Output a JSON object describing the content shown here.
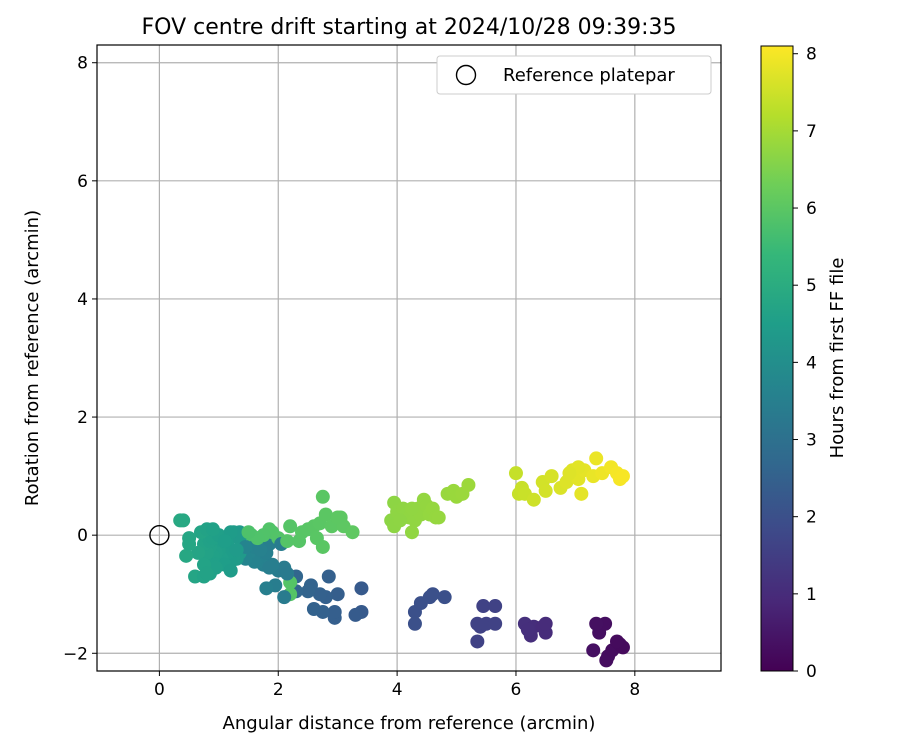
{
  "chart_data": {
    "type": "scatter",
    "title": "FOV centre drift starting at 2024/10/28 09:39:35",
    "xlabel": "Angular distance from reference (arcmin)",
    "ylabel": "Rotation from reference (arcmin)",
    "xlim": [
      -1.05,
      9.45
    ],
    "ylim": [
      -2.3,
      8.3
    ],
    "xticks": [
      "0",
      "2",
      "4",
      "6",
      "8"
    ],
    "yticks": [
      "−2",
      "0",
      "2",
      "4",
      "6",
      "8"
    ],
    "grid": true,
    "legend": {
      "placement": "top-right",
      "entries": [
        "Reference platepar"
      ]
    },
    "reference_point": {
      "x": 0,
      "y": 0
    },
    "colorbar": {
      "label": "Hours from first FF file",
      "range": [
        0,
        8.1
      ],
      "ticks": [
        "0",
        "1",
        "2",
        "3",
        "4",
        "5",
        "6",
        "7",
        "8"
      ],
      "colormap": "viridis",
      "stops": [
        "#440154",
        "#482878",
        "#3e4989",
        "#31688e",
        "#26828e",
        "#1f9e89",
        "#35b779",
        "#6ece58",
        "#b5de2b",
        "#fde725"
      ]
    },
    "series": [
      {
        "points": [
          [
            7.55,
            -2.05
          ],
          [
            7.52,
            -2.12
          ],
          [
            7.62,
            -1.95
          ],
          [
            7.75,
            -1.85
          ],
          [
            7.3,
            -1.95
          ],
          [
            7.4,
            -1.65
          ],
          [
            7.5,
            -1.5
          ],
          [
            7.35,
            -1.5
          ],
          [
            7.8,
            -1.9
          ],
          [
            7.7,
            -1.8
          ],
          [
            6.15,
            -1.5
          ],
          [
            6.25,
            -1.7
          ],
          [
            6.3,
            -1.55
          ],
          [
            6.45,
            -1.55
          ],
          [
            6.5,
            -1.65
          ],
          [
            6.5,
            -1.5
          ],
          [
            6.2,
            -1.6
          ],
          [
            5.4,
            -1.55
          ],
          [
            5.45,
            -1.2
          ],
          [
            5.5,
            -1.5
          ],
          [
            5.65,
            -1.2
          ],
          [
            5.65,
            -1.5
          ],
          [
            5.35,
            -1.8
          ],
          [
            5.35,
            -1.5
          ],
          [
            4.3,
            -1.3
          ],
          [
            4.3,
            -1.5
          ],
          [
            4.4,
            -1.15
          ],
          [
            4.55,
            -1.05
          ],
          [
            4.6,
            -1.0
          ],
          [
            4.8,
            -1.05
          ],
          [
            3.4,
            -0.9
          ],
          [
            3.4,
            -1.3
          ],
          [
            3.3,
            -1.35
          ],
          [
            3.0,
            -1.0
          ],
          [
            2.95,
            -1.4
          ],
          [
            2.95,
            -1.3
          ],
          [
            2.85,
            -0.7
          ],
          [
            2.8,
            -1.05
          ],
          [
            2.75,
            -1.3
          ],
          [
            2.7,
            -1.0
          ],
          [
            2.6,
            -1.25
          ],
          [
            2.55,
            -0.85
          ],
          [
            2.5,
            -0.95
          ],
          [
            2.3,
            -0.95
          ],
          [
            2.2,
            -1.0
          ],
          [
            2.1,
            -1.05
          ],
          [
            2.3,
            -0.7
          ],
          [
            2.2,
            -0.8
          ],
          [
            1.95,
            -0.85
          ],
          [
            1.8,
            -0.9
          ],
          [
            2.0,
            -0.6
          ],
          [
            2.1,
            -0.55
          ],
          [
            2.15,
            -0.65
          ],
          [
            1.9,
            -0.5
          ],
          [
            1.75,
            -0.5
          ],
          [
            1.7,
            -0.45
          ],
          [
            1.85,
            -0.55
          ],
          [
            1.65,
            -0.4
          ],
          [
            1.55,
            -0.35
          ],
          [
            1.6,
            -0.45
          ],
          [
            1.5,
            -0.3
          ],
          [
            1.45,
            -0.4
          ],
          [
            1.35,
            -0.3
          ],
          [
            1.3,
            -0.4
          ],
          [
            1.25,
            -0.35
          ],
          [
            1.2,
            -0.45
          ],
          [
            1.15,
            -0.3
          ],
          [
            1.05,
            -0.4
          ],
          [
            1.55,
            0.0
          ],
          [
            1.6,
            -0.2
          ],
          [
            1.8,
            -0.3
          ],
          [
            1.85,
            -0.15
          ],
          [
            1.7,
            -0.25
          ],
          [
            1.0,
            -0.25
          ],
          [
            0.95,
            -0.3
          ],
          [
            0.9,
            -0.35
          ],
          [
            0.85,
            -0.2
          ],
          [
            0.8,
            -0.3
          ],
          [
            0.75,
            -0.15
          ],
          [
            0.85,
            -0.1
          ],
          [
            0.9,
            -0.05
          ],
          [
            1.0,
            0.0
          ],
          [
            0.7,
            0.05
          ],
          [
            0.8,
            0.1
          ],
          [
            0.9,
            0.1
          ],
          [
            0.65,
            -0.3
          ],
          [
            0.6,
            -0.7
          ],
          [
            0.75,
            -0.7
          ],
          [
            0.85,
            -0.65
          ],
          [
            0.95,
            -0.5
          ],
          [
            1.1,
            -0.5
          ],
          [
            1.2,
            -0.6
          ],
          [
            0.45,
            -0.35
          ],
          [
            0.5,
            -0.05
          ],
          [
            0.5,
            -0.15
          ],
          [
            0.35,
            0.25
          ],
          [
            0.4,
            0.25
          ],
          [
            1.25,
            0.05
          ],
          [
            1.15,
            -0.1
          ],
          [
            1.35,
            -0.05
          ],
          [
            1.35,
            0.05
          ],
          [
            1.45,
            -0.2
          ],
          [
            1.2,
            0.05
          ],
          [
            1.1,
            -0.1
          ],
          [
            1.3,
            -0.25
          ],
          [
            0.95,
            -0.55
          ],
          [
            0.75,
            -0.5
          ],
          [
            0.8,
            -0.65
          ],
          [
            1.9,
            0.05
          ],
          [
            1.85,
            0.1
          ],
          [
            2.0,
            -0.05
          ],
          [
            2.05,
            -0.15
          ],
          [
            2.15,
            -0.1
          ],
          [
            2.2,
            0.15
          ],
          [
            2.35,
            -0.1
          ],
          [
            2.4,
            0.05
          ],
          [
            2.5,
            0.1
          ],
          [
            2.6,
            0.15
          ],
          [
            2.7,
            0.2
          ],
          [
            2.75,
            -0.2
          ],
          [
            2.65,
            -0.05
          ],
          [
            2.8,
            0.35
          ],
          [
            2.75,
            0.65
          ],
          [
            2.9,
            0.15
          ],
          [
            3.05,
            0.3
          ],
          [
            3.1,
            0.15
          ],
          [
            3.25,
            0.05
          ],
          [
            3.0,
            0.3
          ],
          [
            1.75,
            0.0
          ],
          [
            1.65,
            -0.05
          ],
          [
            1.5,
            0.05
          ],
          [
            3.95,
            0.55
          ],
          [
            3.9,
            0.25
          ],
          [
            3.95,
            0.15
          ],
          [
            4.0,
            0.4
          ],
          [
            4.1,
            0.45
          ],
          [
            4.15,
            0.35
          ],
          [
            4.2,
            0.3
          ],
          [
            4.25,
            0.05
          ],
          [
            4.3,
            0.25
          ],
          [
            4.35,
            0.45
          ],
          [
            4.4,
            0.35
          ],
          [
            4.45,
            0.6
          ],
          [
            4.5,
            0.5
          ],
          [
            4.55,
            0.35
          ],
          [
            4.6,
            0.45
          ],
          [
            4.65,
            0.3
          ],
          [
            4.7,
            0.3
          ],
          [
            4.85,
            0.7
          ],
          [
            4.95,
            0.75
          ],
          [
            5.0,
            0.65
          ],
          [
            5.1,
            0.7
          ],
          [
            5.2,
            0.85
          ],
          [
            4.25,
            0.45
          ],
          [
            4.05,
            0.25
          ],
          [
            6.0,
            1.05
          ],
          [
            6.05,
            0.7
          ],
          [
            6.1,
            0.8
          ],
          [
            6.15,
            0.7
          ],
          [
            6.3,
            0.6
          ],
          [
            6.45,
            0.9
          ],
          [
            6.5,
            0.75
          ],
          [
            6.6,
            1.0
          ],
          [
            6.75,
            0.8
          ],
          [
            6.85,
            0.9
          ],
          [
            6.95,
            1.1
          ],
          [
            7.0,
            1.05
          ],
          [
            7.05,
            0.95
          ],
          [
            7.1,
            0.7
          ],
          [
            7.15,
            1.1
          ],
          [
            7.3,
            1.0
          ],
          [
            7.35,
            1.3
          ],
          [
            7.45,
            1.05
          ],
          [
            7.6,
            1.15
          ],
          [
            7.7,
            1.05
          ],
          [
            7.75,
            0.95
          ],
          [
            7.8,
            1.0
          ],
          [
            7.05,
            1.15
          ],
          [
            6.9,
            1.05
          ]
        ]
      }
    ]
  }
}
